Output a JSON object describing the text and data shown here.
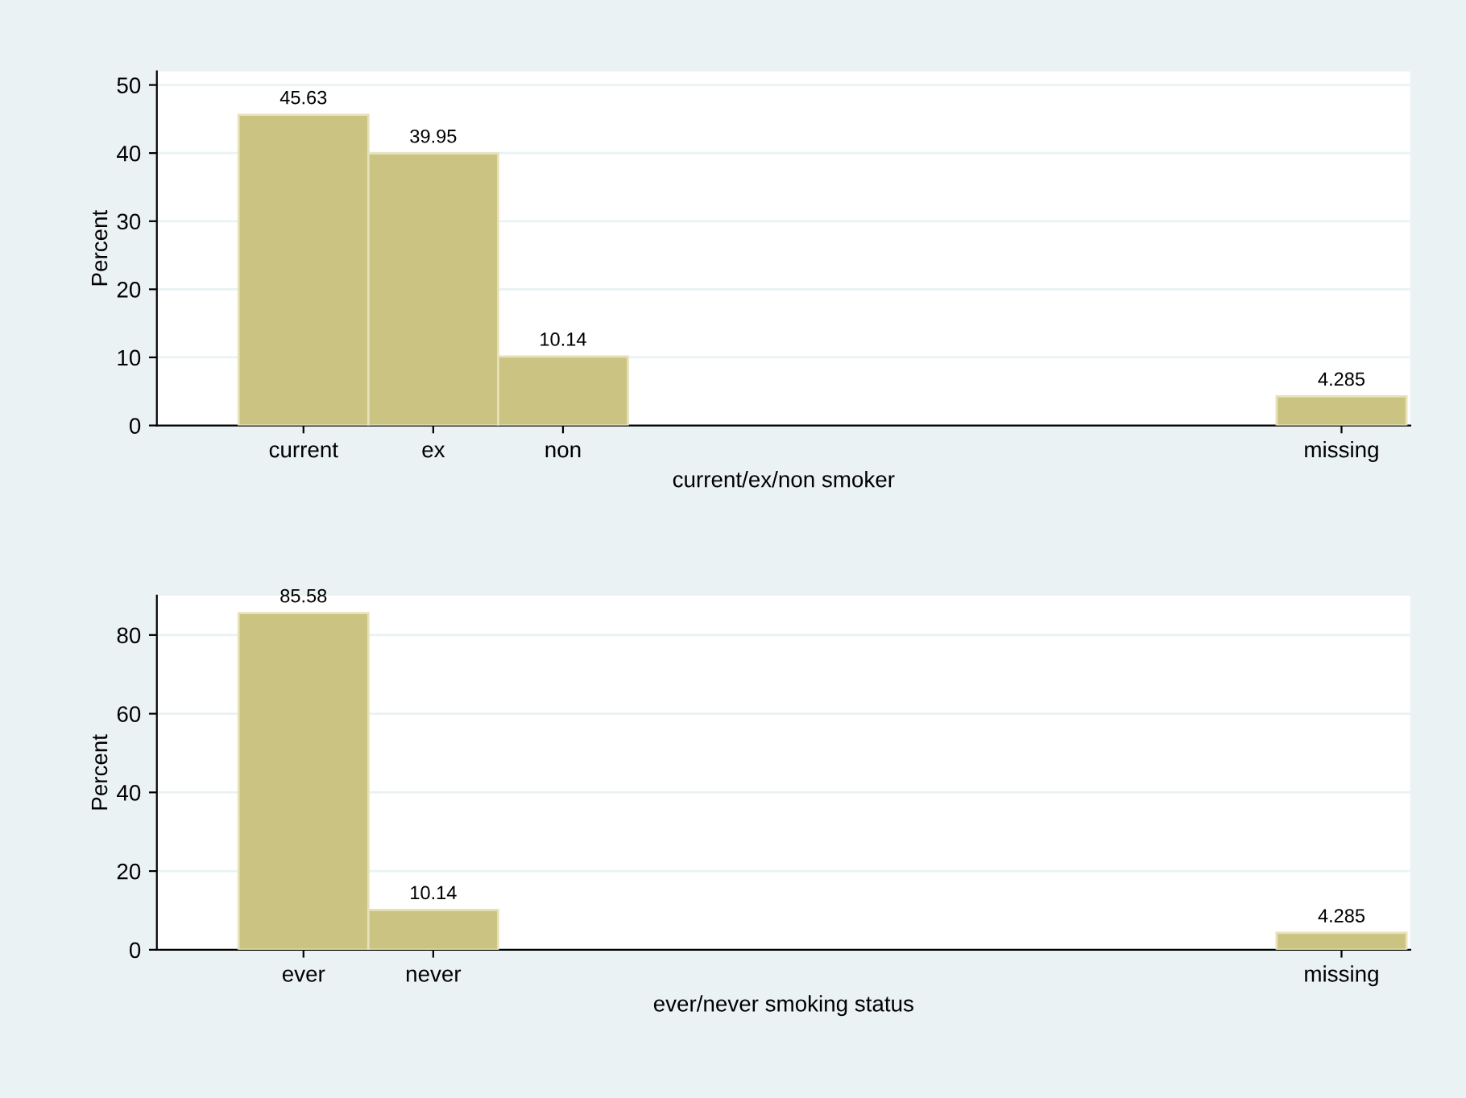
{
  "chart_data": [
    {
      "type": "bar",
      "xlabel": "current/ex/non smoker",
      "ylabel": "Percent",
      "categories": [
        "current",
        "ex",
        "non",
        null,
        null,
        null,
        null,
        null,
        "missing"
      ],
      "values": [
        45.63,
        39.95,
        10.14,
        null,
        null,
        null,
        null,
        null,
        4.285
      ],
      "color": "#cbc382",
      "ylim": [
        0,
        52
      ],
      "yticks": [
        0,
        10,
        20,
        30,
        40,
        50
      ],
      "grid": "y",
      "data_labels": true
    },
    {
      "type": "bar",
      "xlabel": "ever/never smoking status",
      "ylabel": "Percent",
      "categories": [
        "ever",
        "never",
        null,
        null,
        null,
        null,
        null,
        null,
        "missing"
      ],
      "values": [
        85.58,
        10.14,
        null,
        null,
        null,
        null,
        null,
        null,
        4.285
      ],
      "color": "#cbc382",
      "ylim": [
        0,
        90
      ],
      "yticks": [
        0,
        20,
        40,
        60,
        80
      ],
      "grid": "y",
      "data_labels": true
    }
  ]
}
